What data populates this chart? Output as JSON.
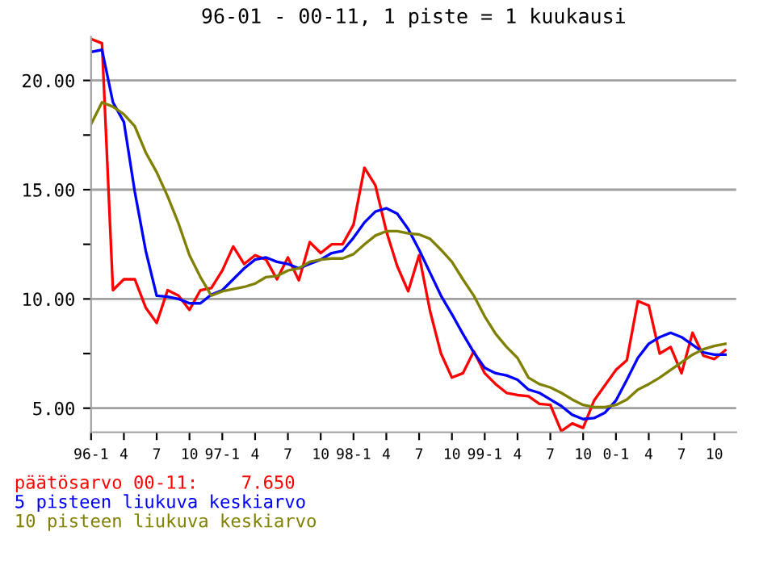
{
  "chart_data": {
    "type": "line",
    "title": "96-01 - 00-11, 1 piste = 1 kuukausi",
    "categories": [
      "96-1",
      null,
      null,
      "4",
      null,
      null,
      "7",
      null,
      null,
      "10",
      null,
      null,
      "97-1",
      null,
      null,
      "4",
      null,
      null,
      "7",
      null,
      null,
      "10",
      null,
      null,
      "98-1",
      null,
      null,
      "4",
      null,
      null,
      "7",
      null,
      null,
      "10",
      null,
      null,
      "99-1",
      null,
      null,
      "4",
      null,
      null,
      "7",
      null,
      null,
      "10",
      null,
      null,
      "0-1",
      null,
      null,
      "4",
      null,
      null,
      "7",
      null,
      null,
      "10",
      null
    ],
    "series": [
      {
        "name": "päätösarvo 00-11:    7.650",
        "color": "#ff0000",
        "values": [
          21.9,
          21.7,
          10.4,
          10.9,
          10.9,
          9.6,
          8.9,
          10.4,
          10.15,
          9.5,
          10.4,
          10.5,
          11.3,
          12.4,
          11.6,
          12.0,
          11.8,
          10.9,
          11.9,
          10.85,
          12.6,
          12.1,
          12.5,
          12.5,
          13.4,
          16.0,
          15.2,
          13.1,
          11.5,
          10.35,
          12.0,
          9.45,
          7.5,
          6.4,
          6.6,
          7.6,
          6.6,
          6.1,
          5.7,
          5.6,
          5.55,
          5.2,
          5.15,
          3.95,
          4.3,
          4.1,
          5.35,
          6.05,
          6.75,
          7.2,
          9.9,
          9.7,
          7.5,
          7.8,
          6.6,
          8.45,
          7.4,
          7.25,
          7.65
        ]
      },
      {
        "name": "5 pisteen liukuva keskiarvo",
        "color": "#0000ff",
        "values": [
          21.3,
          21.4,
          19.0,
          18.1,
          14.9,
          12.2,
          10.15,
          10.1,
          10.0,
          9.8,
          9.8,
          10.2,
          10.4,
          10.9,
          11.4,
          11.8,
          11.9,
          11.7,
          11.6,
          11.4,
          11.6,
          11.8,
          12.1,
          12.2,
          12.8,
          13.5,
          14.0,
          14.15,
          13.9,
          13.2,
          12.25,
          11.2,
          10.15,
          9.3,
          8.4,
          7.55,
          6.85,
          6.6,
          6.5,
          6.3,
          5.85,
          5.7,
          5.4,
          5.1,
          4.7,
          4.5,
          4.55,
          4.8,
          5.35,
          6.3,
          7.3,
          7.95,
          8.25,
          8.45,
          8.25,
          7.9,
          7.55,
          7.45,
          7.45
        ]
      },
      {
        "name": "10 pisteen liukuva keskiarvo",
        "color": "#808000",
        "values": [
          18.0,
          19.0,
          18.8,
          18.45,
          17.9,
          16.7,
          15.8,
          14.7,
          13.45,
          12.0,
          11.0,
          10.15,
          10.35,
          10.45,
          10.55,
          10.7,
          11.0,
          11.05,
          11.3,
          11.4,
          11.7,
          11.8,
          11.85,
          11.85,
          12.05,
          12.5,
          12.9,
          13.1,
          13.1,
          13.0,
          12.95,
          12.75,
          12.25,
          11.7,
          10.9,
          10.15,
          9.2,
          8.4,
          7.8,
          7.3,
          6.4,
          6.1,
          5.95,
          5.7,
          5.4,
          5.15,
          5.05,
          5.05,
          5.15,
          5.4,
          5.85,
          6.1,
          6.4,
          6.75,
          7.1,
          7.45,
          7.7,
          7.85,
          7.95
        ]
      }
    ],
    "ylim": [
      3.9,
      22.0
    ],
    "yticks": [
      {
        "value": 5,
        "label": "5.00"
      },
      {
        "value": 7.5,
        "label": null
      },
      {
        "value": 10,
        "label": "10.00"
      },
      {
        "value": 12.5,
        "label": null
      },
      {
        "value": 15,
        "label": "15.00"
      },
      {
        "value": 17.5,
        "label": null
      },
      {
        "value": 20,
        "label": "20.00"
      }
    ],
    "grid": "y",
    "legend": "bottom left",
    "marker": "none",
    "line_style": "solid"
  }
}
